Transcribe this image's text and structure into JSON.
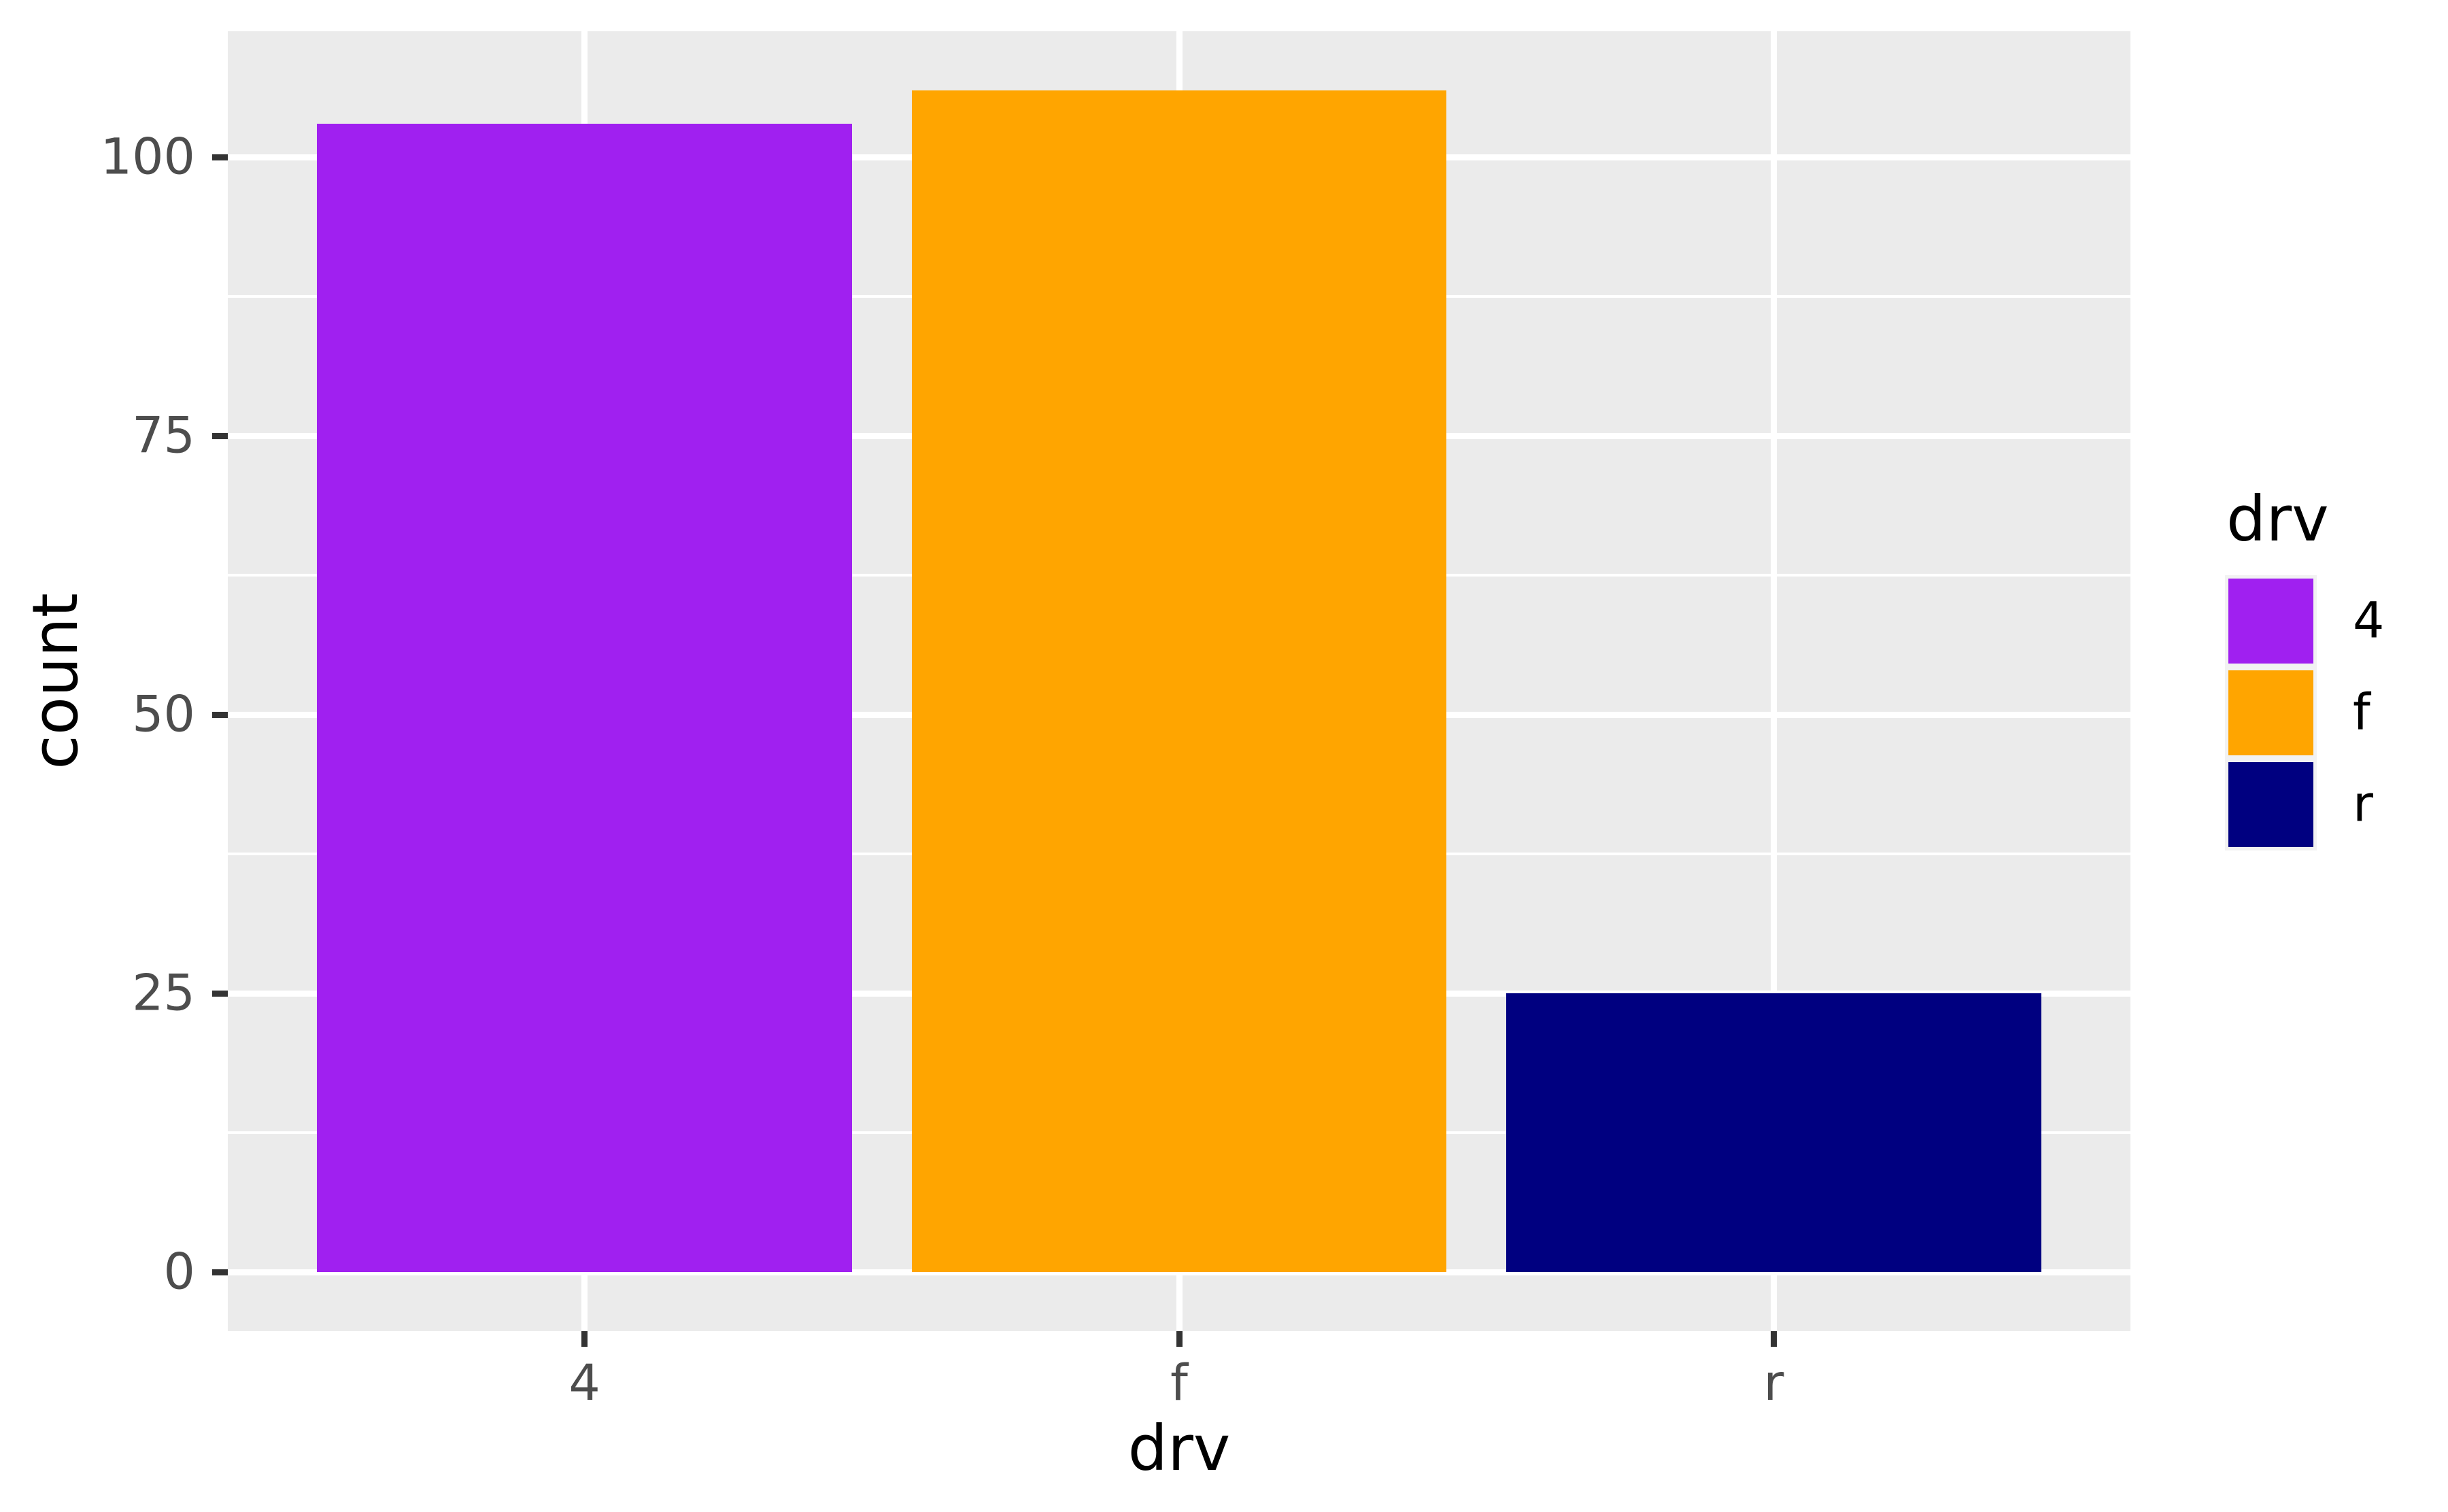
{
  "figure": {
    "background": "#FFFFFF",
    "panel_background": "#EBEBEB",
    "gridline_color": "#FFFFFF",
    "axis_text_color": "#4D4D4D",
    "tick_mark_color": "#333333"
  },
  "chart_data": {
    "type": "bar",
    "title": "",
    "categories": [
      "4",
      "f",
      "r"
    ],
    "values": [
      103,
      106,
      25
    ],
    "bar_colors": [
      "#A020F0",
      "#FFA500",
      "#000080"
    ],
    "xlabel": "drv",
    "ylabel": "count",
    "ylim": [
      -5.3,
      111.3
    ],
    "y_major_ticks": [
      0,
      25,
      50,
      75,
      100
    ],
    "y_major_tick_labels": [
      "0",
      "25",
      "50",
      "75",
      "100"
    ],
    "y_minor_gridlines": [
      12.5,
      37.5,
      62.5,
      87.5
    ],
    "grid": "white major+minor horizontal lines; white major vertical line at each category; shown on grey panel",
    "legend": {
      "title": "drv",
      "position": "right",
      "key_background": "#F2F2F2",
      "entries": [
        {
          "label": "4",
          "color": "#A020F0"
        },
        {
          "label": "f",
          "color": "#FFA500"
        },
        {
          "label": "r",
          "color": "#000080"
        }
      ]
    }
  }
}
